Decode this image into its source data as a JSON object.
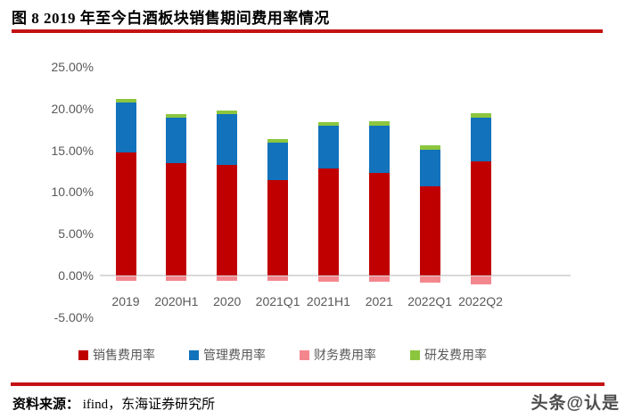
{
  "title": "图 8  2019 年至今白酒板块销售期间费用率情况",
  "colors": {
    "rule_red": "#c41212",
    "axis_text": "#595959",
    "zero_line": "#d9d9d9"
  },
  "chart_data": {
    "type": "bar",
    "stacked": true,
    "title": "2019 年至今白酒板块销售期间费用率情况",
    "categories": [
      "2019",
      "2020H1",
      "2020",
      "2021Q1",
      "2021H1",
      "2021",
      "2022Q1",
      "2022Q2"
    ],
    "series": [
      {
        "key": "sales",
        "name": "销售费用率",
        "color": "#c00000",
        "values": [
          14.7,
          13.5,
          13.3,
          11.4,
          12.8,
          12.3,
          10.7,
          13.7
        ]
      },
      {
        "key": "management",
        "name": "管理费用率",
        "color": "#1272bc",
        "values": [
          6.0,
          5.4,
          6.0,
          4.5,
          5.2,
          5.7,
          4.4,
          5.2
        ]
      },
      {
        "key": "finance",
        "name": "财务费用率",
        "color": "#f4868e",
        "values": [
          -0.5,
          -0.5,
          -0.5,
          -0.5,
          -0.6,
          -0.65,
          -0.75,
          -1.0
        ]
      },
      {
        "key": "rd",
        "name": "研发费用率",
        "color": "#8cc63e",
        "values": [
          0.5,
          0.4,
          0.5,
          0.4,
          0.4,
          0.45,
          0.45,
          0.5
        ]
      }
    ],
    "ylim": [
      -5,
      25
    ],
    "ytick_values": [
      25,
      20,
      15,
      10,
      5,
      0,
      -5
    ],
    "ytick_labels": [
      "25.00%",
      "20.00%",
      "15.00%",
      "10.00%",
      "5.00%",
      "0.00%",
      "-5.00%"
    ],
    "grid": false,
    "legend_position": "bottom"
  },
  "footer": {
    "source_label": "资料来源：",
    "source_text": " ifind，东海证券研究所"
  },
  "watermark": "头条@认是"
}
